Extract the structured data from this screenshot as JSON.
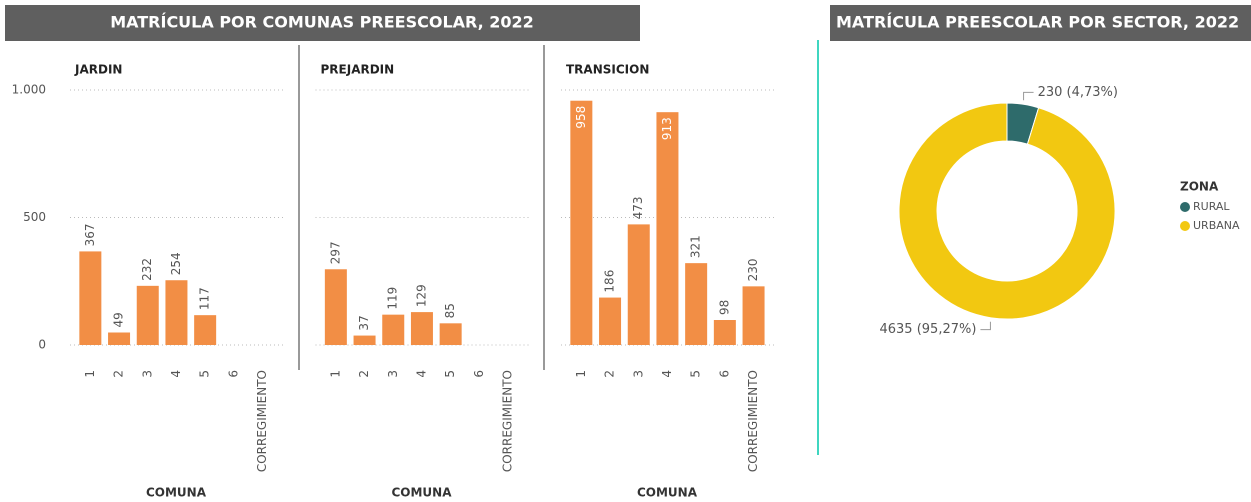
{
  "chart_data": [
    {
      "type": "bar",
      "title": "MATRÍCULA POR COMUNAS PREESCOLAR, 2022",
      "xlabel": "COMUNA",
      "categories": [
        "1",
        "2",
        "3",
        "4",
        "5",
        "6",
        "CORREGIMIENTO"
      ],
      "ylim": [
        0,
        1000
      ],
      "yticks": [
        0,
        500,
        {
          "value": 1000,
          "label": "1.000"
        }
      ],
      "grid": true,
      "color": "#f28e45",
      "panels": [
        {
          "name": "JARDIN",
          "values": [
            367,
            49,
            232,
            254,
            117,
            null,
            null
          ]
        },
        {
          "name": "PREJARDIN",
          "values": [
            297,
            37,
            119,
            129,
            85,
            null,
            null
          ]
        },
        {
          "name": "TRANSICION",
          "values": [
            958,
            186,
            473,
            913,
            321,
            98,
            230
          ]
        }
      ]
    },
    {
      "type": "donut",
      "title": "MATRÍCULA PREESCOLAR POR SECTOR, 2022",
      "legend_title": "ZONA",
      "categories": [
        "RURAL",
        "URBANA"
      ],
      "values": [
        230,
        4635
      ],
      "value_labels": [
        "230 (4,73%)",
        "4635 (95,27%)"
      ],
      "colors": [
        "#2e6b6b",
        "#f2c811"
      ]
    }
  ]
}
